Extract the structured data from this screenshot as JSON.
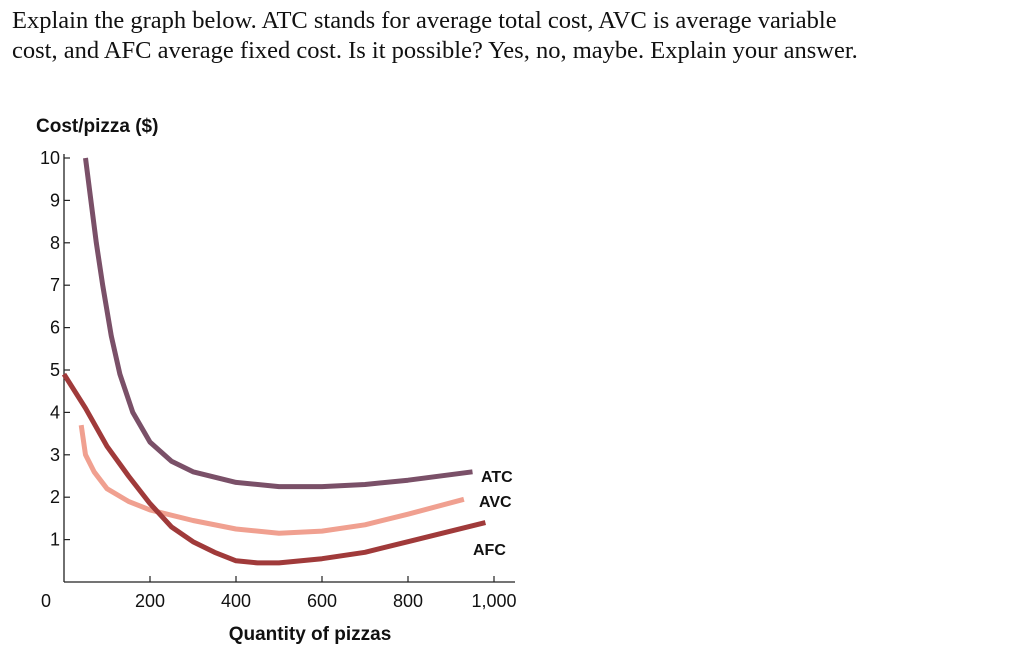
{
  "question": {
    "line1": "Explain the graph below. ATC stands for average total cost, AVC is average variable",
    "line2": "cost, and AFC average fixed cost. Is it possible? Yes, no, maybe. Explain your answer."
  },
  "chart_data": {
    "type": "line",
    "title": "",
    "ylabel": "Cost/pizza ($)",
    "xlabel": "Quantity of pizzas",
    "xlim": [
      0,
      1000
    ],
    "ylim": [
      0,
      10
    ],
    "x_ticks": [
      0,
      200,
      400,
      600,
      800,
      1000
    ],
    "x_tick_labels": [
      "0",
      "200",
      "400",
      "600",
      "800",
      "1,000"
    ],
    "y_ticks": [
      1,
      2,
      3,
      4,
      5,
      6,
      7,
      8,
      9,
      10
    ],
    "y_tick_labels": [
      "1",
      "2",
      "3",
      "4",
      "5",
      "6",
      "7",
      "8",
      "9",
      "10"
    ],
    "grid": false,
    "series": [
      {
        "name": "ATC",
        "color": "#7a5068",
        "points": [
          [
            50,
            10
          ],
          [
            60,
            9.2
          ],
          [
            75,
            8.0
          ],
          [
            90,
            7.0
          ],
          [
            110,
            5.8
          ],
          [
            130,
            4.9
          ],
          [
            160,
            4.0
          ],
          [
            200,
            3.3
          ],
          [
            250,
            2.85
          ],
          [
            300,
            2.6
          ],
          [
            400,
            2.35
          ],
          [
            500,
            2.25
          ],
          [
            600,
            2.25
          ],
          [
            700,
            2.3
          ],
          [
            800,
            2.4
          ],
          [
            950,
            2.6
          ]
        ]
      },
      {
        "name": "AVC",
        "color": "#f0a090",
        "points": [
          [
            40,
            3.7
          ],
          [
            50,
            3.0
          ],
          [
            70,
            2.6
          ],
          [
            100,
            2.2
          ],
          [
            150,
            1.9
          ],
          [
            200,
            1.7
          ],
          [
            300,
            1.45
          ],
          [
            400,
            1.25
          ],
          [
            500,
            1.15
          ],
          [
            600,
            1.2
          ],
          [
            700,
            1.35
          ],
          [
            800,
            1.6
          ],
          [
            930,
            1.95
          ]
        ]
      },
      {
        "name": "AFC",
        "color": "#a03a3a",
        "points": [
          [
            0,
            4.9
          ],
          [
            50,
            4.1
          ],
          [
            100,
            3.2
          ],
          [
            150,
            2.5
          ],
          [
            200,
            1.85
          ],
          [
            250,
            1.3
          ],
          [
            300,
            0.95
          ],
          [
            350,
            0.7
          ],
          [
            400,
            0.5
          ],
          [
            450,
            0.45
          ],
          [
            500,
            0.45
          ],
          [
            600,
            0.55
          ],
          [
            700,
            0.7
          ],
          [
            800,
            0.95
          ],
          [
            900,
            1.2
          ],
          [
            980,
            1.4
          ]
        ]
      }
    ],
    "annotations": [
      {
        "text": "ATC",
        "series": "ATC"
      },
      {
        "text": "AVC",
        "series": "AVC"
      },
      {
        "text": "AFC",
        "series": "AFC"
      }
    ]
  }
}
